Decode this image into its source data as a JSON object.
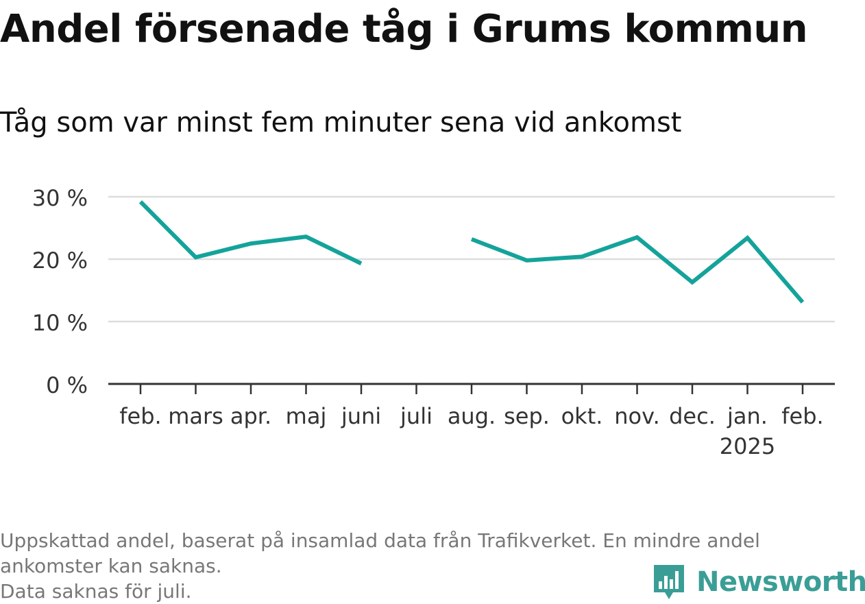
{
  "title": "Andel försenade tåg i Grums kommun",
  "subtitle": "Tåg som var minst fem minuter sena vid ankomst",
  "footer": {
    "line1": "Uppskattad andel, baserat på insamlad data från Trafikverket. En mindre andel",
    "line2": "ankomster kan saknas.",
    "line3": "Data saknas för juli."
  },
  "brand": {
    "name": "Newsworthy",
    "color": "#3a9e96",
    "icon": "bar-chart-icon"
  },
  "chart_data": {
    "type": "line",
    "categories": [
      "feb.",
      "mars",
      "apr.",
      "maj",
      "juni",
      "juli",
      "aug.",
      "sep.",
      "okt.",
      "nov.",
      "dec.",
      "jan.",
      "feb."
    ],
    "year_labels": [
      "",
      "",
      "",
      "",
      "",
      "",
      "",
      "",
      "",
      "",
      "",
      "2025",
      ""
    ],
    "series": [
      {
        "values": [
          29.2,
          20.3,
          22.5,
          23.6,
          19.3,
          null,
          23.2,
          19.8,
          20.4,
          23.5,
          16.3,
          23.4,
          13.1
        ],
        "color": "#14a39a"
      }
    ],
    "y_ticks": [
      0,
      10,
      20,
      30
    ],
    "y_tick_labels": [
      "0 %",
      "10 %",
      "20 %",
      "30 %"
    ],
    "ylim": [
      0,
      30
    ],
    "grid": true,
    "gridline_color": "#dddddd",
    "axis_color": "#333333",
    "missing_data": [
      "juli"
    ]
  }
}
